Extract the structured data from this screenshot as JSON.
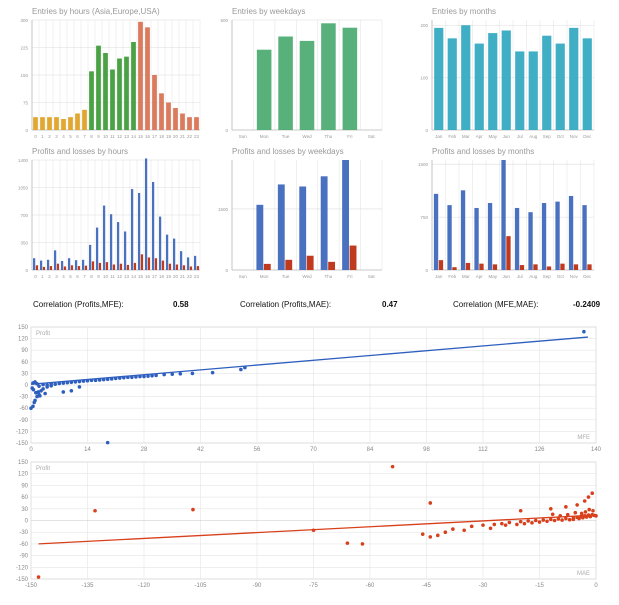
{
  "correlations": [
    {
      "label": "Correlation (Profits,MFE):",
      "value": "0.58"
    },
    {
      "label": "Correlation (Profits,MAE):",
      "value": "0.47"
    },
    {
      "label": "Correlation (MFE,MAE):",
      "value": "-0.2409"
    }
  ],
  "colors": {
    "entries_hours_asia": "#e0a020",
    "entries_hours_europe": "#3c9a36",
    "entries_hours_usa": "#d87050",
    "entries_weekdays": "#4aaa70",
    "entries_months": "#30a8c0",
    "profit_bar": "#4a70c0",
    "loss_bar": "#c03a20",
    "scatter_mfe": "#2e5fbf",
    "scatter_mae": "#d8401c"
  },
  "chart_data": [
    {
      "id": "entries_hours",
      "type": "bar",
      "title": "Entries by hours (Asia,Europe,USA)",
      "categories": [
        "0",
        "1",
        "2",
        "3",
        "4",
        "5",
        "6",
        "7",
        "8",
        "9",
        "10",
        "11",
        "12",
        "13",
        "14",
        "15",
        "16",
        "17",
        "18",
        "19",
        "20",
        "21",
        "22",
        "23"
      ],
      "values": [
        35,
        35,
        35,
        35,
        30,
        35,
        45,
        55,
        160,
        230,
        210,
        165,
        195,
        200,
        240,
        295,
        280,
        150,
        100,
        75,
        60,
        45,
        35,
        35
      ],
      "ylim": [
        0,
        300
      ],
      "yticks": [
        "0",
        "75",
        "150",
        "225",
        "300"
      ]
    },
    {
      "id": "entries_weekdays",
      "type": "bar",
      "title": "Entries by weekdays",
      "categories": [
        "Sun",
        "Mon",
        "Tue",
        "Wed",
        "Thu",
        "Fri",
        "Sat"
      ],
      "values": [
        0,
        365,
        425,
        405,
        485,
        465,
        0
      ],
      "ylim": [
        0,
        500
      ],
      "yticks": [
        "0",
        "500"
      ]
    },
    {
      "id": "entries_months",
      "type": "bar",
      "title": "Entries by months",
      "categories": [
        "Jan",
        "Feb",
        "Mar",
        "Apr",
        "May",
        "Jun",
        "Jul",
        "Aug",
        "Sep",
        "Oct",
        "Nov",
        "Dec"
      ],
      "values": [
        195,
        175,
        200,
        165,
        185,
        190,
        150,
        150,
        180,
        165,
        195,
        175
      ],
      "ylim": [
        0,
        210
      ],
      "yticks": [
        "0",
        "100",
        "200"
      ]
    },
    {
      "id": "pl_hours",
      "type": "bar",
      "title": "Profits and losses by hours",
      "categories": [
        "0",
        "1",
        "2",
        "3",
        "4",
        "5",
        "6",
        "7",
        "8",
        "9",
        "10",
        "11",
        "12",
        "13",
        "14",
        "15",
        "16",
        "17",
        "18",
        "19",
        "20",
        "21",
        "22",
        "23"
      ],
      "series": [
        {
          "values": [
            150,
            120,
            130,
            250,
            115,
            150,
            125,
            130,
            320,
            540,
            820,
            710,
            610,
            490,
            1030,
            980,
            1420,
            1120,
            680,
            450,
            400,
            240,
            160,
            180
          ]
        },
        {
          "values": [
            60,
            40,
            50,
            80,
            45,
            60,
            50,
            55,
            110,
            90,
            100,
            70,
            80,
            65,
            90,
            200,
            160,
            150,
            120,
            80,
            70,
            60,
            45,
            50
          ]
        }
      ],
      "ylim": [
        0,
        1400
      ],
      "yticks": [
        "0",
        "350",
        "700",
        "1050",
        "1400"
      ]
    },
    {
      "id": "pl_weekdays",
      "type": "bar",
      "title": "Profits and losses by weekdays",
      "categories": [
        "Sun",
        "Mon",
        "Tue",
        "Wed",
        "Thu",
        "Fri",
        "Sat"
      ],
      "series": [
        {
          "values": [
            0,
            1600,
            2100,
            2050,
            2300,
            2700,
            0
          ]
        },
        {
          "values": [
            0,
            150,
            250,
            350,
            200,
            600,
            0
          ]
        }
      ],
      "ylim": [
        0,
        2700
      ],
      "yticks": [
        "0",
        "1500"
      ]
    },
    {
      "id": "pl_months",
      "type": "bar",
      "title": "Profits and losses by months",
      "categories": [
        "Jan",
        "Feb",
        "Mar",
        "Apr",
        "May",
        "Jun",
        "Jul",
        "Aug",
        "Sep",
        "Oct",
        "Nov",
        "Dec"
      ],
      "series": [
        {
          "values": [
            1080,
            920,
            1130,
            880,
            950,
            1560,
            880,
            820,
            950,
            970,
            1050,
            920
          ]
        },
        {
          "values": [
            140,
            40,
            100,
            90,
            80,
            480,
            70,
            80,
            50,
            90,
            80,
            80
          ]
        }
      ],
      "ylim": [
        0,
        1560
      ],
      "yticks": [
        "0",
        "750",
        "1500"
      ]
    },
    {
      "id": "scatter_mfe",
      "type": "scatter",
      "ylabel": "Profit",
      "xlabel": "MFE",
      "xlim": [
        0,
        140
      ],
      "ylim": [
        -150,
        150
      ],
      "xticks": [
        "0",
        "14",
        "28",
        "42",
        "56",
        "70",
        "84",
        "98",
        "112",
        "126",
        "140"
      ],
      "yticks": [
        "150",
        "120",
        "90",
        "60",
        "30",
        "0",
        "-30",
        "-60",
        "-90",
        "-120",
        "-150"
      ],
      "trendline": [
        [
          0,
          2
        ],
        [
          138,
          124
        ]
      ],
      "points": [
        [
          0,
          -60
        ],
        [
          0.5,
          -55
        ],
        [
          1,
          -40
        ],
        [
          1.5,
          -30
        ],
        [
          2,
          -25
        ],
        [
          0.8,
          -45
        ],
        [
          1.2,
          -20
        ],
        [
          2.5,
          -15
        ],
        [
          3,
          -10
        ],
        [
          4,
          -5
        ],
        [
          0.3,
          -8
        ],
        [
          0.6,
          -12
        ],
        [
          1.8,
          -18
        ],
        [
          2.2,
          -28
        ],
        [
          3.5,
          -22
        ],
        [
          5,
          -2
        ],
        [
          6,
          2
        ],
        [
          7,
          4
        ],
        [
          8,
          5
        ],
        [
          9,
          6
        ],
        [
          10,
          7
        ],
        [
          11,
          8
        ],
        [
          12,
          9
        ],
        [
          13,
          10
        ],
        [
          14,
          11
        ],
        [
          15,
          12
        ],
        [
          16,
          12
        ],
        [
          17,
          13
        ],
        [
          18,
          14
        ],
        [
          19,
          15
        ],
        [
          20,
          16
        ],
        [
          21,
          17
        ],
        [
          22,
          18
        ],
        [
          23,
          19
        ],
        [
          24,
          20
        ],
        [
          25,
          20
        ],
        [
          26,
          21
        ],
        [
          27,
          22
        ],
        [
          28,
          22
        ],
        [
          29,
          23
        ],
        [
          30,
          24
        ],
        [
          31,
          25
        ],
        [
          33,
          27
        ],
        [
          35,
          28
        ],
        [
          37,
          29
        ],
        [
          40,
          30
        ],
        [
          45,
          32
        ],
        [
          52,
          40
        ],
        [
          53,
          45
        ],
        [
          137,
          138
        ],
        [
          19,
          -149
        ],
        [
          8,
          -18
        ],
        [
          10,
          -15
        ],
        [
          12,
          -5
        ],
        [
          0.5,
          5
        ],
        [
          1,
          8
        ],
        [
          1.5,
          3
        ],
        [
          2,
          -3
        ],
        [
          3,
          1
        ],
        [
          4,
          0
        ],
        [
          5,
          3
        ]
      ]
    },
    {
      "id": "scatter_mae",
      "type": "scatter",
      "ylabel": "Profit",
      "xlabel": "MAE",
      "xlim": [
        -150,
        0
      ],
      "ylim": [
        -150,
        150
      ],
      "xticks": [
        "-150",
        "-135",
        "-120",
        "-105",
        "-90",
        "-75",
        "-60",
        "-45",
        "-30",
        "-15",
        "0"
      ],
      "yticks": [
        "150",
        "120",
        "90",
        "60",
        "30",
        "0",
        "-30",
        "-60",
        "-90",
        "-120",
        "-150"
      ],
      "trendline": [
        [
          -148,
          -60
        ],
        [
          0,
          14
        ]
      ],
      "points": [
        [
          -148,
          -145
        ],
        [
          -133,
          25
        ],
        [
          -107,
          28
        ],
        [
          -54,
          138
        ],
        [
          -75,
          -25
        ],
        [
          -62,
          -60
        ],
        [
          -66,
          -58
        ],
        [
          -46,
          -35
        ],
        [
          -44,
          -42
        ],
        [
          -40,
          -30
        ],
        [
          -38,
          -22
        ],
        [
          -33,
          -15
        ],
        [
          -30,
          -12
        ],
        [
          -27,
          -10
        ],
        [
          -25,
          -8
        ],
        [
          -23,
          -5
        ],
        [
          -20,
          -3
        ],
        [
          -18,
          -1
        ],
        [
          -16,
          0
        ],
        [
          -14,
          1
        ],
        [
          -12,
          3
        ],
        [
          -10,
          4
        ],
        [
          -8,
          5
        ],
        [
          -6,
          6
        ],
        [
          -5,
          8
        ],
        [
          -4,
          10
        ],
        [
          -3,
          12
        ],
        [
          -2,
          14
        ],
        [
          -1,
          15
        ],
        [
          -0.5,
          13
        ],
        [
          0,
          12
        ],
        [
          -1.5,
          10
        ],
        [
          -2.5,
          9
        ],
        [
          -3.5,
          7
        ],
        [
          -4.5,
          5
        ],
        [
          -6,
          3
        ],
        [
          -7,
          2
        ],
        [
          -9,
          1
        ],
        [
          -11,
          0
        ],
        [
          -13,
          -2
        ],
        [
          -15,
          -4
        ],
        [
          -17,
          -6
        ],
        [
          -19,
          -8
        ],
        [
          -21,
          -10
        ],
        [
          -24,
          -12
        ],
        [
          -28,
          -20
        ],
        [
          -35,
          -25
        ],
        [
          -42,
          -38
        ],
        [
          -44,
          45
        ],
        [
          -20,
          25
        ],
        [
          -12,
          30
        ],
        [
          -8,
          35
        ],
        [
          -5,
          40
        ],
        [
          -3,
          50
        ],
        [
          -2,
          60
        ],
        [
          -1,
          70
        ],
        [
          -0.8,
          25
        ],
        [
          -1.8,
          28
        ],
        [
          -2.8,
          22
        ],
        [
          -3.8,
          18
        ],
        [
          -5.5,
          20
        ],
        [
          -7.5,
          15
        ],
        [
          -9.5,
          12
        ],
        [
          -11.5,
          16
        ]
      ]
    }
  ]
}
